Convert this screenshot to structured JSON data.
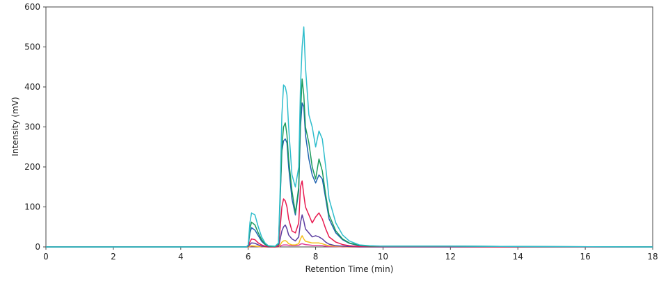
{
  "chart_data": {
    "type": "line",
    "title": "",
    "xlabel": "Retention Time (min)",
    "ylabel": "Intensity (mV)",
    "xlim": [
      0,
      18
    ],
    "ylim": [
      0,
      600
    ],
    "xticks": [
      0,
      2,
      4,
      6,
      8,
      10,
      12,
      14,
      16,
      18
    ],
    "yticks": [
      0,
      100,
      200,
      300,
      400,
      500,
      600
    ],
    "grid": false,
    "legend": "none",
    "x": [
      0,
      5.95,
      6.0,
      6.05,
      6.1,
      6.2,
      6.3,
      6.4,
      6.5,
      6.6,
      6.8,
      6.9,
      6.95,
      7.0,
      7.05,
      7.1,
      7.15,
      7.2,
      7.3,
      7.4,
      7.5,
      7.55,
      7.6,
      7.65,
      7.7,
      7.8,
      7.9,
      8.0,
      8.1,
      8.2,
      8.3,
      8.4,
      8.6,
      8.8,
      9.0,
      9.3,
      9.6,
      10,
      12,
      14,
      18
    ],
    "series": [
      {
        "color": "#e0409a",
        "values": [
          0,
          0,
          0,
          1,
          2,
          2,
          1,
          0,
          0,
          0,
          0,
          0,
          2,
          4,
          5,
          5,
          5,
          4,
          3,
          3,
          4,
          7,
          8,
          7,
          6,
          5,
          4,
          4,
          4,
          3,
          2,
          1,
          1,
          0,
          0,
          0,
          0,
          0,
          0,
          0,
          0
        ]
      },
      {
        "color": "#f5c020",
        "values": [
          0,
          0,
          0,
          2,
          3,
          2,
          1,
          1,
          0,
          0,
          0,
          0,
          5,
          12,
          15,
          16,
          13,
          8,
          5,
          5,
          8,
          20,
          28,
          20,
          14,
          12,
          10,
          10,
          10,
          8,
          5,
          3,
          2,
          1,
          0,
          0,
          0,
          0,
          0,
          0,
          0
        ]
      },
      {
        "color": "#5a3ca0",
        "values": [
          0,
          0,
          1,
          6,
          10,
          9,
          5,
          2,
          1,
          0,
          0,
          1,
          20,
          40,
          50,
          55,
          45,
          30,
          20,
          15,
          25,
          60,
          80,
          65,
          45,
          35,
          25,
          28,
          25,
          20,
          12,
          7,
          3,
          2,
          1,
          0,
          0,
          0,
          0,
          0,
          0
        ]
      },
      {
        "color": "#e8194f",
        "values": [
          0,
          0,
          2,
          12,
          20,
          18,
          10,
          5,
          2,
          1,
          0,
          3,
          50,
          100,
          120,
          115,
          100,
          70,
          40,
          35,
          60,
          150,
          165,
          130,
          100,
          80,
          60,
          75,
          85,
          70,
          45,
          25,
          12,
          6,
          3,
          1,
          1,
          1,
          1,
          0,
          0
        ]
      },
      {
        "color": "#1f63b0",
        "values": [
          0,
          0,
          3,
          35,
          48,
          42,
          28,
          14,
          6,
          2,
          1,
          7,
          120,
          240,
          265,
          270,
          260,
          200,
          120,
          80,
          140,
          300,
          360,
          350,
          280,
          220,
          180,
          160,
          180,
          170,
          120,
          70,
          35,
          18,
          9,
          3,
          2,
          2,
          2,
          1,
          0
        ]
      },
      {
        "color": "#1a9a5a",
        "values": [
          0,
          0,
          4,
          45,
          62,
          55,
          35,
          18,
          7,
          2,
          1,
          8,
          130,
          250,
          300,
          310,
          280,
          220,
          140,
          85,
          150,
          330,
          420,
          380,
          300,
          260,
          200,
          170,
          220,
          190,
          130,
          80,
          40,
          20,
          10,
          4,
          2,
          2,
          2,
          1,
          0
        ]
      },
      {
        "color": "#2ebdcc",
        "values": [
          0,
          0,
          5,
          60,
          85,
          80,
          50,
          25,
          10,
          3,
          2,
          10,
          150,
          330,
          405,
          400,
          380,
          300,
          180,
          150,
          200,
          400,
          500,
          550,
          450,
          330,
          300,
          250,
          290,
          270,
          200,
          120,
          60,
          30,
          15,
          5,
          3,
          2,
          2,
          1,
          0
        ]
      }
    ]
  }
}
